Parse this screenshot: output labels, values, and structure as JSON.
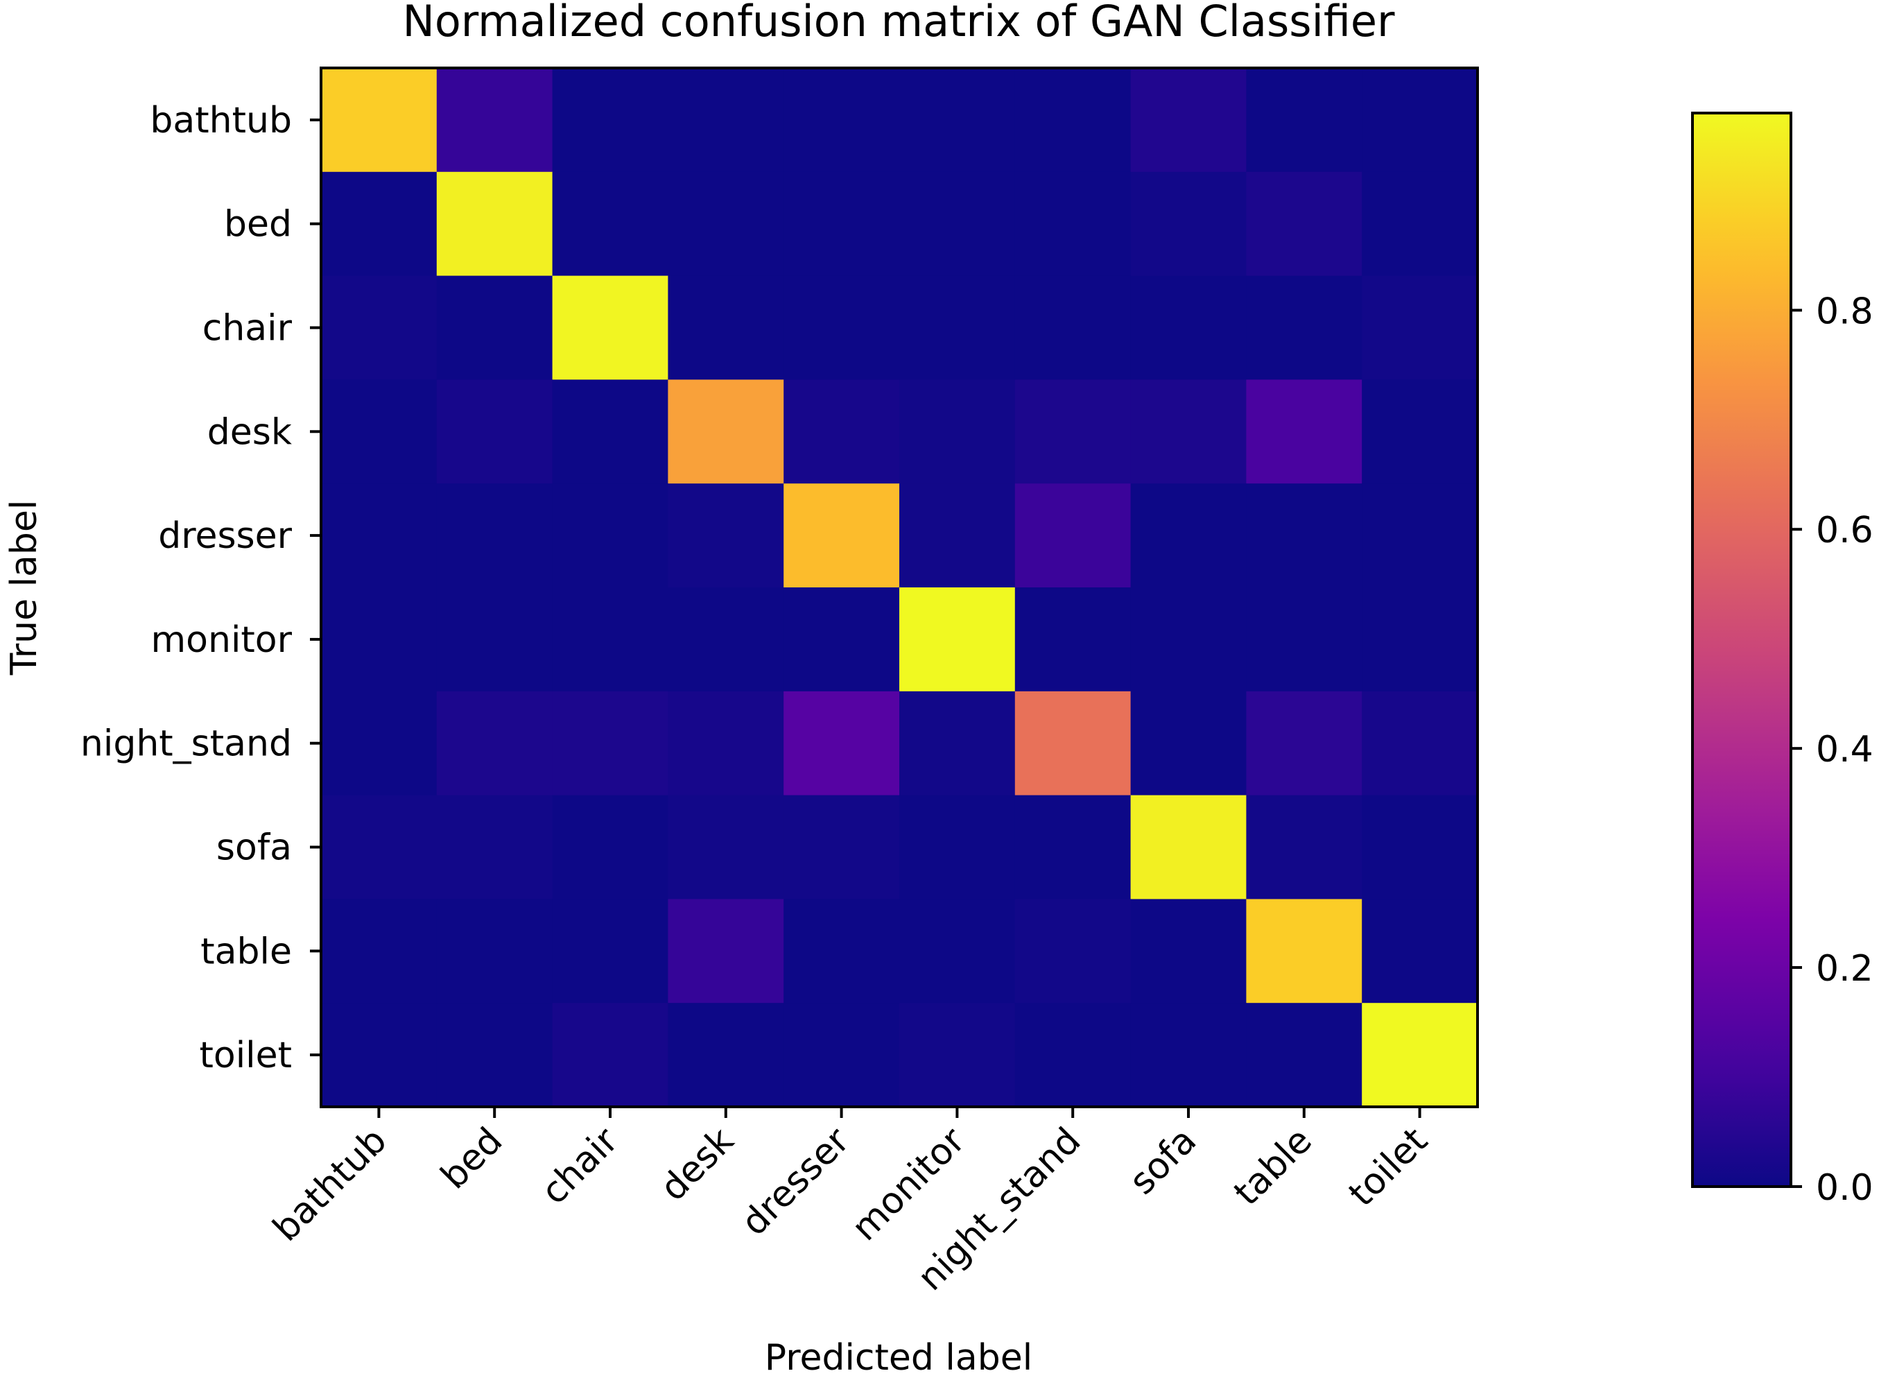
{
  "chart_data": {
    "type": "heatmap",
    "title": "Normalized confusion matrix of GAN Classifier",
    "xlabel": "Predicted label",
    "ylabel": "True label",
    "x_categories": [
      "bathtub",
      "bed",
      "chair",
      "desk",
      "dresser",
      "monitor",
      "night_stand",
      "sofa",
      "table",
      "toilet"
    ],
    "y_categories": [
      "bathtub",
      "bed",
      "chair",
      "desk",
      "dresser",
      "monitor",
      "night_stand",
      "sofa",
      "table",
      "toilet"
    ],
    "values": [
      [
        0.88,
        0.08,
        0.0,
        0.0,
        0.0,
        0.0,
        0.0,
        0.04,
        0.0,
        0.0
      ],
      [
        0.0,
        0.96,
        0.0,
        0.0,
        0.0,
        0.0,
        0.0,
        0.01,
        0.03,
        0.0
      ],
      [
        0.01,
        0.0,
        0.97,
        0.0,
        0.0,
        0.0,
        0.0,
        0.0,
        0.0,
        0.01
      ],
      [
        0.0,
        0.02,
        0.0,
        0.77,
        0.02,
        0.01,
        0.03,
        0.03,
        0.12,
        0.0
      ],
      [
        0.0,
        0.0,
        0.0,
        0.01,
        0.84,
        0.01,
        0.09,
        0.0,
        0.0,
        0.0
      ],
      [
        0.0,
        0.0,
        0.0,
        0.0,
        0.0,
        0.98,
        0.0,
        0.0,
        0.0,
        0.0
      ],
      [
        0.0,
        0.03,
        0.03,
        0.02,
        0.15,
        0.01,
        0.63,
        0.0,
        0.06,
        0.02
      ],
      [
        0.01,
        0.01,
        0.0,
        0.01,
        0.01,
        0.0,
        0.0,
        0.96,
        0.01,
        0.0
      ],
      [
        0.0,
        0.0,
        0.0,
        0.08,
        0.0,
        0.0,
        0.01,
        0.0,
        0.88,
        0.0
      ],
      [
        0.0,
        0.0,
        0.02,
        0.0,
        0.0,
        0.01,
        0.0,
        0.0,
        0.0,
        0.98
      ]
    ],
    "colormap": "plasma",
    "vmin": 0.0,
    "vmax": 0.98,
    "colorbar_ticks": [
      0.0,
      0.2,
      0.4,
      0.6,
      0.8
    ],
    "colorbar_tick_labels": [
      "0.0",
      "0.2",
      "0.4",
      "0.6",
      "0.8"
    ],
    "legend_position": "right"
  }
}
